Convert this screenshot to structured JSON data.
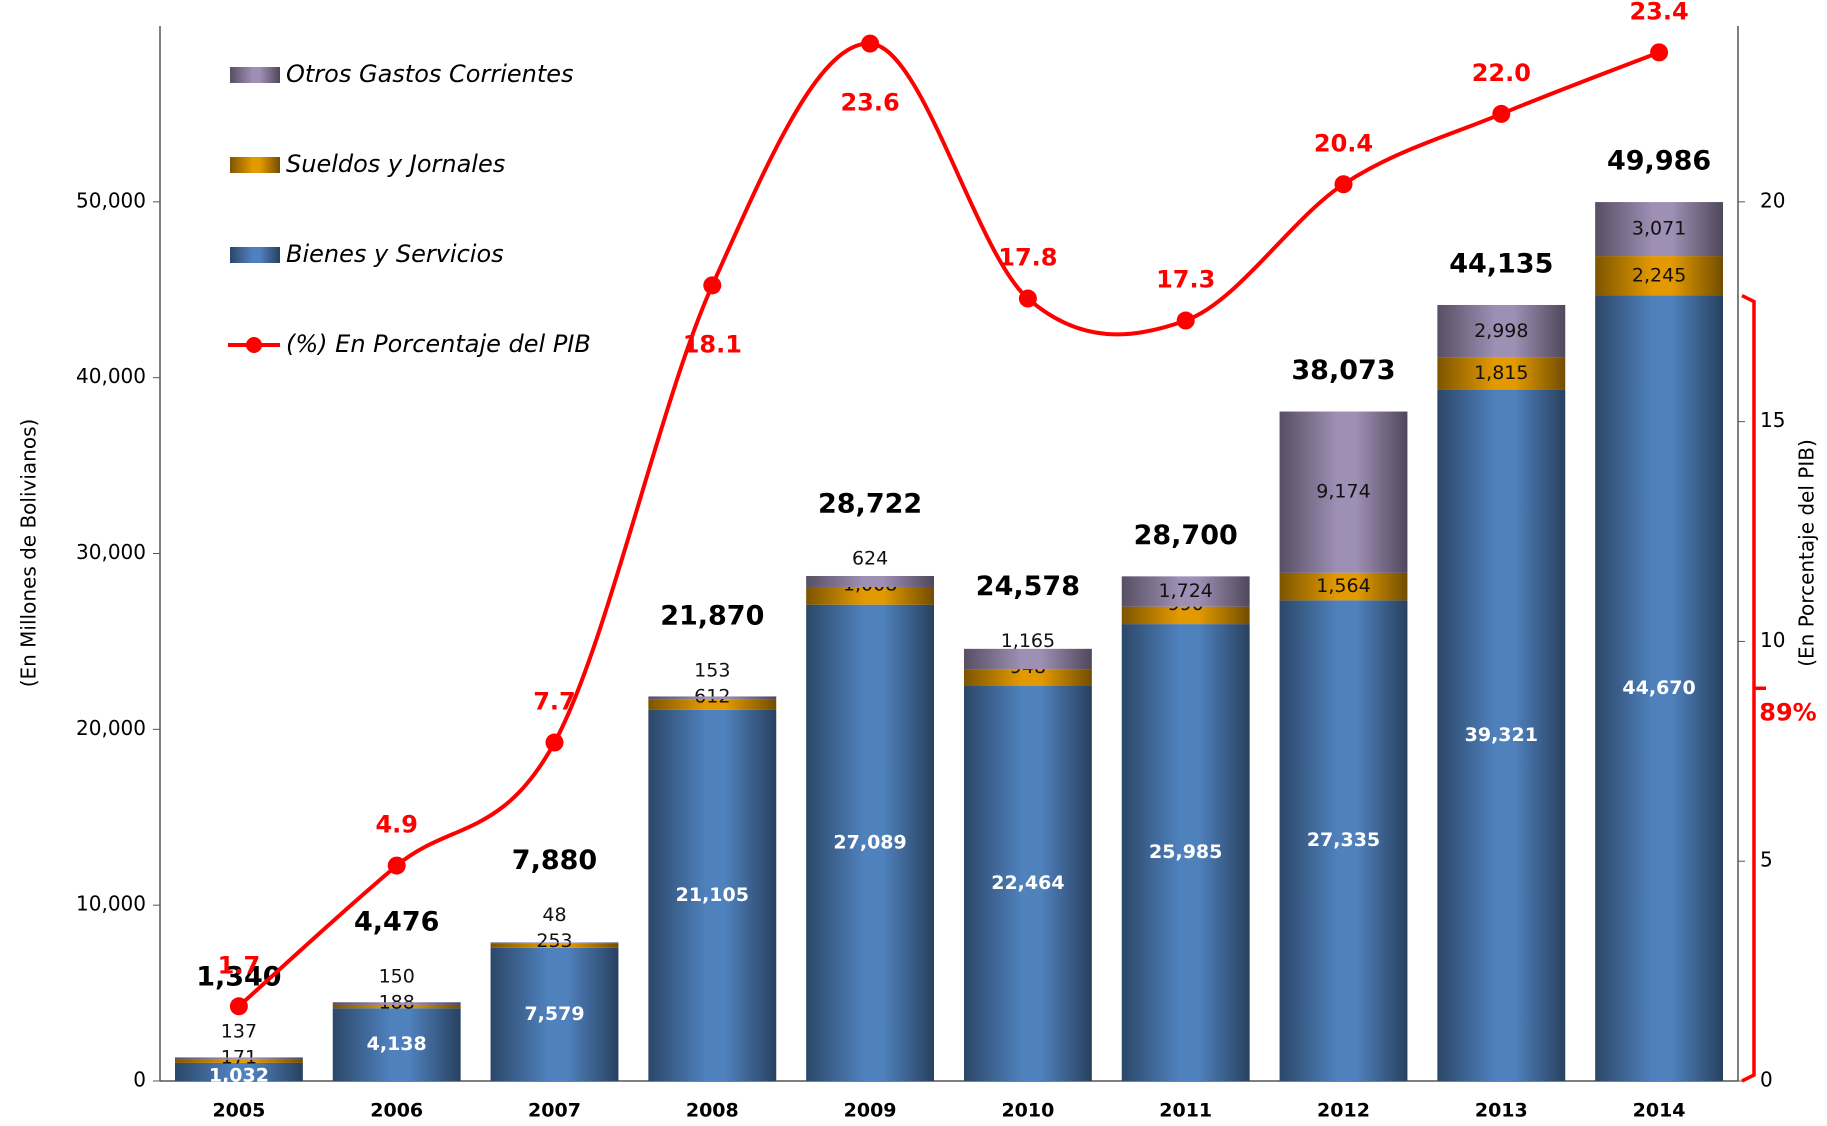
{
  "chart_data": {
    "type": "bar",
    "categories": [
      "2005",
      "2006",
      "2007",
      "2008",
      "2009",
      "2010",
      "2011",
      "2012",
      "2013",
      "2014"
    ],
    "series": [
      {
        "name": "Bienes y Servicios",
        "color": "#4f81bd",
        "values": [
          1032,
          4138,
          7579,
          21105,
          27089,
          22464,
          25985,
          27335,
          39321,
          44670
        ],
        "value_labels": [
          "1,032",
          "4,138",
          "7,579",
          "21,105",
          "27,089",
          "22,464",
          "25,985",
          "27,335",
          "39,321",
          "44,670"
        ]
      },
      {
        "name": "Sueldos y Jornales",
        "color": "#e39a00",
        "values": [
          171,
          188,
          253,
          612,
          1008,
          948,
          990,
          1564,
          1815,
          2245
        ],
        "value_labels": [
          "171",
          "188",
          "253",
          "612",
          "1,008",
          "948",
          "990",
          "1,564",
          "1,815",
          "2,245"
        ]
      },
      {
        "name": "Otros Gastos Corrientes",
        "color": "#9e8fb4",
        "values": [
          137,
          150,
          48,
          153,
          624,
          1165,
          1724,
          9174,
          2998,
          3071
        ],
        "value_labels": [
          "137",
          "150",
          "48",
          "153",
          "624",
          "1,165",
          "1,724",
          "9,174",
          "2,998",
          "3,071"
        ]
      },
      {
        "name": "(%) En Porcentaje del PIB",
        "color": "#ff0000",
        "axis": "y2",
        "values": [
          1.7,
          4.9,
          7.7,
          18.1,
          23.6,
          17.8,
          17.3,
          20.4,
          22.0,
          23.4
        ],
        "value_labels": [
          "1.7",
          "4.9",
          "7.7",
          "18.1",
          "23.6",
          "17.8",
          "17.3",
          "20.4",
          "22.0",
          "23.4"
        ]
      }
    ],
    "totals": {
      "values": [
        1340,
        4476,
        7880,
        21870,
        28722,
        24578,
        28700,
        38073,
        44135,
        49986
      ],
      "value_labels": [
        "1,340",
        "4,476",
        "7,880",
        "21,870",
        "28,722",
        "24,578",
        "28,700",
        "38,073",
        "44,135",
        "49,986"
      ]
    },
    "ylabel": "(En Millones de Bolivianos)",
    "y2label": "(En Porcentaje del PIB)",
    "ylim": [
      0,
      60000
    ],
    "yticks": [
      0,
      {
        "value": 10000,
        "label": "10,000"
      },
      {
        "value": 20000,
        "label": "20,000"
      },
      {
        "value": 30000,
        "label": "30,000"
      },
      {
        "value": 40000,
        "label": "40,000"
      },
      {
        "value": 50000,
        "label": "50,000"
      }
    ],
    "y2lim": [
      0,
      24
    ],
    "y2ticks": [
      0,
      5,
      10,
      15,
      20
    ],
    "annotation": "89%",
    "legend": "top-left",
    "grid": false
  }
}
